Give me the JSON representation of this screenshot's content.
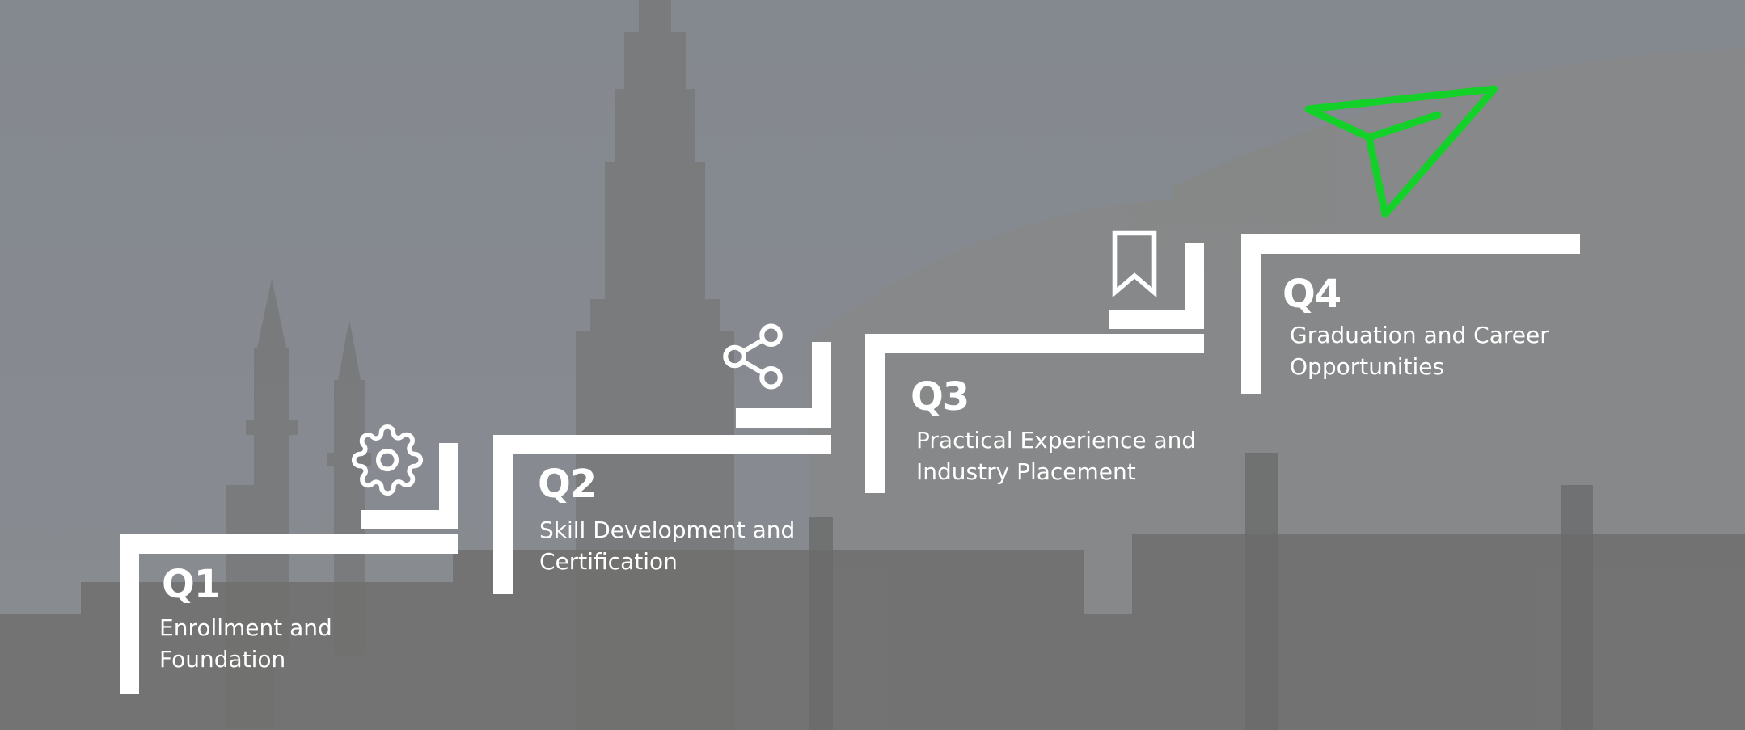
{
  "colors": {
    "sky": "#7f8792",
    "building": "#6e6e6c",
    "accent": "#14d12a",
    "line": "#ffffff"
  },
  "steps": [
    {
      "title": "Q1",
      "description": "Enrollment and\nFoundation",
      "icon": "gear-icon"
    },
    {
      "title": "Q2",
      "description": "Skill Development and\nCertification",
      "icon": "share-icon"
    },
    {
      "title": "Q3",
      "description": "Practical Experience and\nIndustry Placement",
      "icon": "bookmark-icon"
    },
    {
      "title": "Q4",
      "description": "Graduation and Career\nOpportunities",
      "icon": "send-icon"
    }
  ]
}
